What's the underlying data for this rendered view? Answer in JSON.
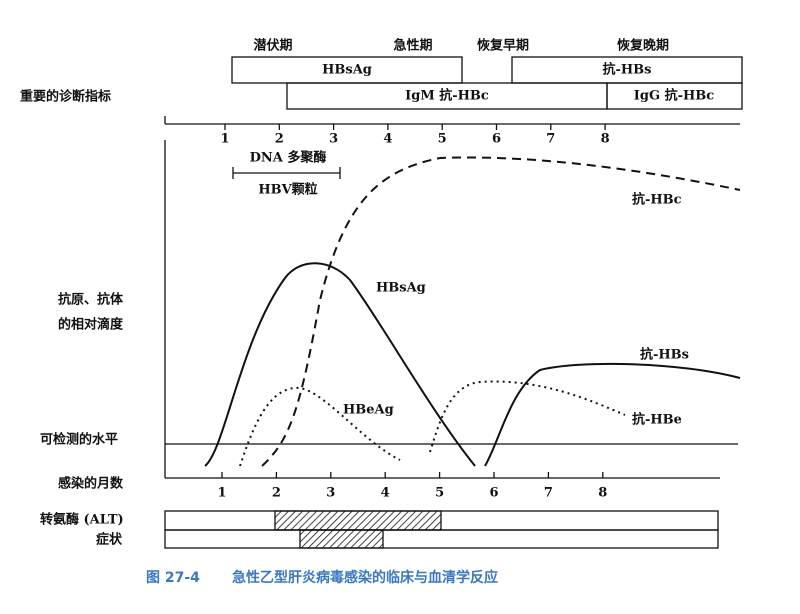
{
  "phases": [
    "潜伏期",
    "急性期",
    "恢复早期",
    "恢复晚期"
  ],
  "row_label": "重要的诊断指标",
  "bars": [
    "HBsAg",
    "抗-HBs",
    "IgM 抗-HBc",
    "IgG 抗-HBc"
  ],
  "top_months": [
    1,
    2,
    3,
    4,
    5,
    6,
    7,
    8
  ],
  "dna_label": "DNA 多聚酶",
  "hbv_label": "HBV颗粒",
  "y_label": [
    "抗原、抗体",
    "的相对滴度"
  ],
  "curve_labels": {
    "anti_hbc": "抗-HBc",
    "hbsag": "HBsAg",
    "hbeag": "HBeAg",
    "anti_hbs": "抗-HBs",
    "anti_hbe": "抗-HBe"
  },
  "detectable": "可检测的水平",
  "x_label": "感染的月数",
  "bottom_months": [
    1,
    2,
    3,
    4,
    5,
    6,
    7,
    8
  ],
  "alt_label": "转氨酶 (ALT)",
  "symptom_label": "症状",
  "caption": {
    "number": "图 27-4",
    "text": "急性乙型肝炎病毒感染的临床与血清学反应"
  }
}
